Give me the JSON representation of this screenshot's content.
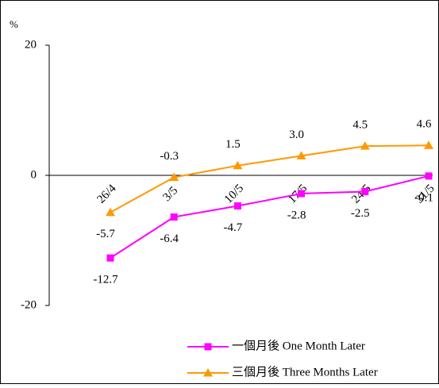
{
  "chart_data": {
    "type": "line",
    "y_unit": "%",
    "categories": [
      "26/4",
      "3/5",
      "10/5",
      "17/5",
      "24/5",
      "31/5"
    ],
    "series": [
      {
        "name": "一個月後 One Month Later",
        "color": "#ff00ff",
        "marker": "square",
        "values": [
          -12.7,
          -6.4,
          -4.7,
          -2.8,
          -2.5,
          -0.1
        ]
      },
      {
        "name": "三個月後 Three Months Later",
        "color": "#ff9900",
        "marker": "triangle",
        "values": [
          -5.7,
          -0.3,
          1.5,
          3.0,
          4.5,
          4.6
        ],
        "value_labels": [
          "-5.7",
          "-0.3",
          "1.5",
          "3.0",
          "4.5",
          "4.6"
        ]
      }
    ],
    "ylim": [
      -20,
      20
    ],
    "yticks": [
      -20,
      0,
      20
    ]
  }
}
